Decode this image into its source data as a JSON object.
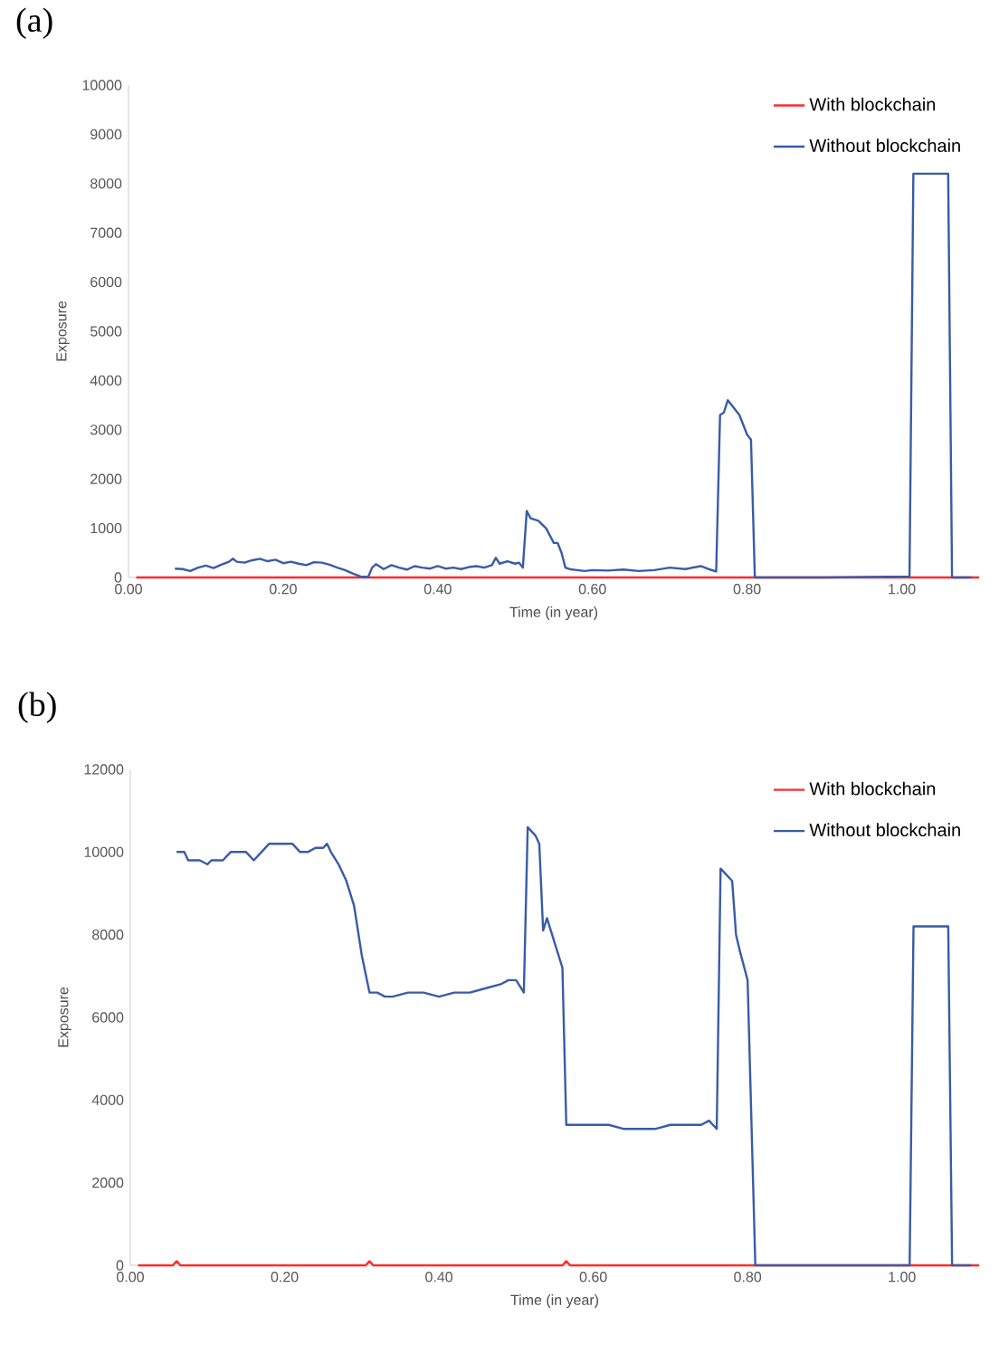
{
  "chart_data": [
    {
      "type": "line",
      "title": "(a)",
      "xlabel": "Time (in year)",
      "ylabel": "Exposure",
      "legend": "top right",
      "xlim": [
        0,
        1.1
      ],
      "xticks": [
        {
          "value": 0,
          "label": "0.00"
        },
        {
          "value": 0.2,
          "label": "0.20"
        },
        {
          "value": 0.4,
          "label": "0.40"
        },
        {
          "value": 0.6,
          "label": "0.60"
        },
        {
          "value": 0.8,
          "label": "0.80"
        },
        {
          "value": 1.0,
          "label": "1.00"
        }
      ],
      "ylim": [
        0,
        10000
      ],
      "yticks": [
        0,
        1000,
        2000,
        3000,
        4000,
        5000,
        6000,
        7000,
        8000,
        9000,
        10000
      ],
      "series": [
        {
          "name": "With blockchain",
          "color": "#ff2a2a",
          "x": [
            0.01,
            1.1
          ],
          "values": [
            0,
            0
          ]
        },
        {
          "name": "Without blockchain",
          "color": "#3a5ba8",
          "x": [
            0.06,
            0.07,
            0.08,
            0.09,
            0.1,
            0.11,
            0.12,
            0.13,
            0.135,
            0.14,
            0.15,
            0.16,
            0.17,
            0.18,
            0.19,
            0.2,
            0.21,
            0.22,
            0.23,
            0.24,
            0.25,
            0.26,
            0.27,
            0.28,
            0.29,
            0.3,
            0.31,
            0.315,
            0.32,
            0.33,
            0.34,
            0.35,
            0.36,
            0.37,
            0.38,
            0.39,
            0.4,
            0.41,
            0.42,
            0.43,
            0.44,
            0.45,
            0.46,
            0.47,
            0.475,
            0.48,
            0.49,
            0.5,
            0.505,
            0.51,
            0.515,
            0.52,
            0.53,
            0.54,
            0.55,
            0.555,
            0.56,
            0.565,
            0.57,
            0.58,
            0.59,
            0.6,
            0.62,
            0.64,
            0.66,
            0.68,
            0.7,
            0.72,
            0.74,
            0.75,
            0.76,
            0.765,
            0.77,
            0.775,
            0.78,
            0.79,
            0.8,
            0.805,
            0.81,
            0.9,
            1.01,
            1.015,
            1.06,
            1.065,
            1.09
          ],
          "values": [
            180,
            170,
            130,
            200,
            240,
            190,
            260,
            320,
            380,
            320,
            300,
            350,
            380,
            330,
            360,
            290,
            320,
            280,
            250,
            310,
            300,
            260,
            200,
            150,
            80,
            20,
            10,
            200,
            270,
            170,
            250,
            200,
            160,
            230,
            200,
            180,
            230,
            180,
            200,
            170,
            210,
            230,
            200,
            250,
            400,
            280,
            330,
            280,
            300,
            200,
            1350,
            1200,
            1150,
            1000,
            700,
            700,
            500,
            200,
            170,
            150,
            130,
            150,
            140,
            160,
            130,
            150,
            200,
            170,
            230,
            170,
            120,
            3300,
            3350,
            3600,
            3500,
            3300,
            2900,
            2800,
            0,
            0,
            20,
            8200,
            8200,
            0,
            0
          ]
        }
      ]
    },
    {
      "type": "line",
      "title": "(b)",
      "xlabel": "Time (in year)",
      "ylabel": "Exposure",
      "legend": "top right",
      "xlim": [
        0,
        1.1
      ],
      "xticks": [
        {
          "value": 0,
          "label": "0.00"
        },
        {
          "value": 0.2,
          "label": "0.20"
        },
        {
          "value": 0.4,
          "label": "0.40"
        },
        {
          "value": 0.6,
          "label": "0.60"
        },
        {
          "value": 0.8,
          "label": "0.80"
        },
        {
          "value": 1.0,
          "label": "1.00"
        }
      ],
      "ylim": [
        0,
        12000
      ],
      "yticks": [
        0,
        2000,
        4000,
        6000,
        8000,
        10000,
        12000
      ],
      "series": [
        {
          "name": "With blockchain",
          "color": "#ff2a2a",
          "x": [
            0.01,
            0.055,
            0.06,
            0.065,
            0.305,
            0.31,
            0.315,
            0.56,
            0.565,
            0.57,
            1.1
          ],
          "values": [
            0,
            0,
            100,
            0,
            0,
            100,
            0,
            0,
            100,
            0,
            0
          ]
        },
        {
          "name": "Without blockchain",
          "color": "#3a5ba8",
          "x": [
            0.06,
            0.07,
            0.075,
            0.09,
            0.1,
            0.105,
            0.12,
            0.13,
            0.14,
            0.15,
            0.16,
            0.17,
            0.18,
            0.19,
            0.2,
            0.21,
            0.22,
            0.23,
            0.24,
            0.25,
            0.255,
            0.26,
            0.27,
            0.28,
            0.29,
            0.3,
            0.31,
            0.32,
            0.33,
            0.34,
            0.36,
            0.38,
            0.4,
            0.42,
            0.44,
            0.46,
            0.48,
            0.49,
            0.5,
            0.51,
            0.515,
            0.525,
            0.53,
            0.535,
            0.54,
            0.55,
            0.56,
            0.565,
            0.58,
            0.6,
            0.62,
            0.64,
            0.66,
            0.68,
            0.7,
            0.72,
            0.74,
            0.75,
            0.76,
            0.765,
            0.78,
            0.785,
            0.79,
            0.8,
            0.81,
            1.01,
            1.015,
            1.06,
            1.065,
            1.09
          ],
          "values": [
            10000,
            10000,
            9800,
            9800,
            9700,
            9800,
            9800,
            10000,
            10000,
            10000,
            9800,
            10000,
            10200,
            10200,
            10200,
            10200,
            10000,
            10000,
            10100,
            10100,
            10200,
            10000,
            9700,
            9300,
            8700,
            7500,
            6600,
            6600,
            6500,
            6500,
            6600,
            6600,
            6500,
            6600,
            6600,
            6700,
            6800,
            6900,
            6900,
            6600,
            10600,
            10400,
            10200,
            8100,
            8400,
            7800,
            7200,
            3400,
            3400,
            3400,
            3400,
            3300,
            3300,
            3300,
            3400,
            3400,
            3400,
            3500,
            3300,
            9600,
            9300,
            8000,
            7600,
            6900,
            0,
            0,
            8200,
            8200,
            0,
            0
          ]
        }
      ]
    }
  ]
}
